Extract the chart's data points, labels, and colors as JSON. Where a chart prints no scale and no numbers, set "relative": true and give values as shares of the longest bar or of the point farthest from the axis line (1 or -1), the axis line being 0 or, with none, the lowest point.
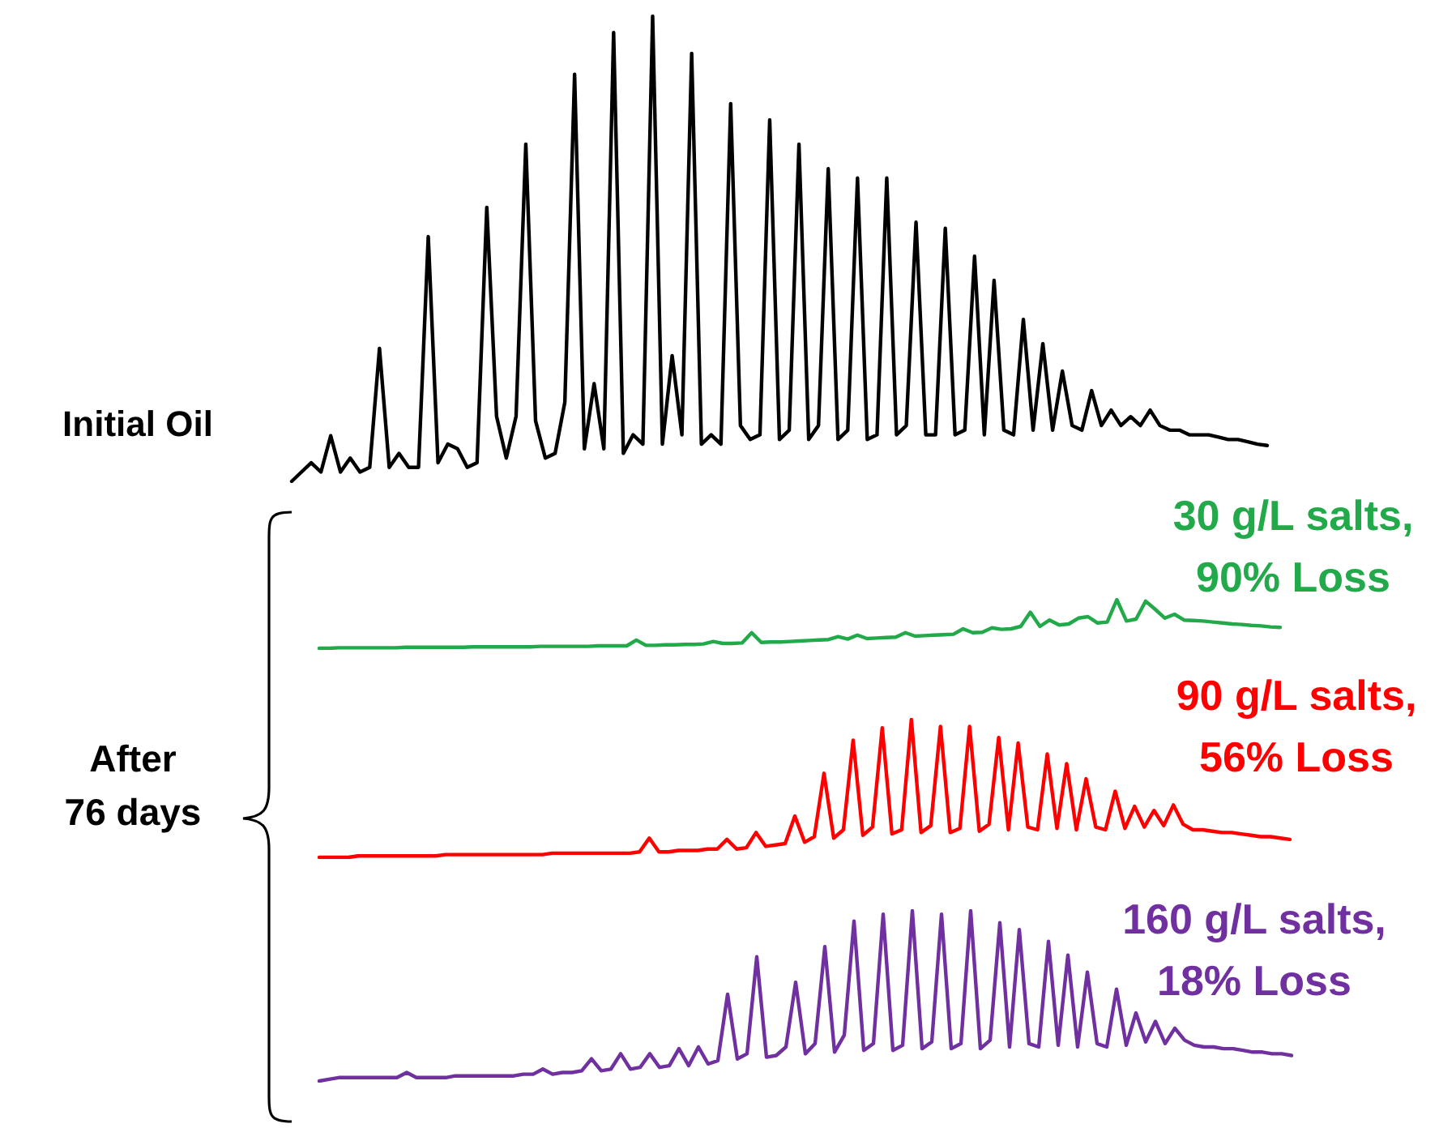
{
  "chart_data": [
    {
      "type": "line",
      "relative": true,
      "title": "Initial Oil",
      "color": "#000000",
      "categories": [
        null,
        null,
        null,
        null,
        null,
        null,
        null,
        null,
        null,
        null,
        null,
        null,
        null,
        null,
        null,
        null,
        null,
        null,
        null,
        null,
        null,
        null,
        null,
        null,
        null,
        null,
        null,
        null,
        null,
        null,
        null,
        null,
        null,
        null,
        null,
        null,
        null,
        null,
        null,
        null,
        null,
        null,
        null,
        null,
        null,
        null,
        null,
        null,
        null,
        null,
        null,
        null,
        null,
        null,
        null,
        null,
        null,
        null,
        null,
        null,
        null,
        null,
        null,
        null,
        null,
        null,
        null,
        null,
        null,
        null,
        null,
        null,
        null,
        null,
        null,
        null,
        null,
        null,
        null,
        null,
        null,
        null,
        null,
        null,
        null,
        null,
        null,
        null,
        null,
        null,
        null,
        null,
        null,
        null,
        null,
        null,
        null,
        null,
        null,
        null,
        null
      ],
      "values": [
        0.0,
        0.02,
        0.04,
        0.02,
        0.098,
        0.02,
        0.05,
        0.02,
        0.03,
        0.286,
        0.03,
        0.06,
        0.03,
        0.03,
        0.526,
        0.04,
        0.08,
        0.07,
        0.03,
        0.04,
        0.589,
        0.14,
        0.05,
        0.14,
        0.725,
        0.13,
        0.05,
        0.06,
        0.17,
        0.875,
        0.07,
        0.21,
        0.07,
        0.965,
        0.06,
        0.1,
        0.08,
        1.0,
        0.08,
        0.27,
        0.1,
        0.92,
        0.08,
        0.1,
        0.08,
        0.812,
        0.12,
        0.09,
        0.1,
        0.777,
        0.09,
        0.11,
        0.725,
        0.09,
        0.12,
        0.672,
        0.09,
        0.11,
        0.652,
        0.09,
        0.1,
        0.652,
        0.1,
        0.12,
        0.557,
        0.1,
        0.1,
        0.544,
        0.1,
        0.11,
        0.484,
        0.1,
        0.432,
        0.11,
        0.1,
        0.348,
        0.11,
        0.296,
        0.11,
        0.237,
        0.12,
        0.11,
        0.195,
        0.12,
        0.153,
        0.12,
        0.139,
        0.12,
        0.153,
        0.12,
        0.11,
        0.11,
        0.1,
        0.1,
        0.1,
        0.095,
        0.09,
        0.09,
        0.085,
        0.08,
        0.077
      ]
    },
    {
      "type": "line",
      "relative": true,
      "title": "30 g/L salts,\n90% Loss",
      "color": "#22a94a",
      "categories": [
        null,
        null,
        null,
        null,
        null,
        null,
        null,
        null,
        null,
        null,
        null,
        null,
        null,
        null,
        null,
        null,
        null,
        null,
        null,
        null,
        null,
        null,
        null,
        null,
        null,
        null,
        null,
        null,
        null,
        null,
        null,
        null,
        null,
        null,
        null,
        null,
        null,
        null,
        null,
        null,
        null,
        null,
        null,
        null,
        null,
        null,
        null,
        null,
        null,
        null,
        null,
        null,
        null,
        null,
        null,
        null,
        null,
        null,
        null,
        null,
        null,
        null,
        null,
        null,
        null,
        null,
        null,
        null,
        null,
        null,
        null,
        null,
        null,
        null,
        null,
        null,
        null,
        null,
        null,
        null,
        null,
        null,
        null,
        null,
        null,
        null,
        null,
        null,
        null,
        null,
        null,
        null,
        null,
        null,
        null,
        null,
        null,
        null,
        null,
        null,
        null
      ],
      "values": [
        0,
        0,
        0.01,
        0.01,
        0.01,
        0.01,
        0.01,
        0.01,
        0.01,
        0.02,
        0.02,
        0.02,
        0.02,
        0.02,
        0.02,
        0.02,
        0.03,
        0.03,
        0.03,
        0.03,
        0.03,
        0.03,
        0.03,
        0.04,
        0.04,
        0.04,
        0.04,
        0.04,
        0.04,
        0.05,
        0.05,
        0.05,
        0.05,
        0.17,
        0.06,
        0.06,
        0.07,
        0.07,
        0.08,
        0.08,
        0.09,
        0.14,
        0.1,
        0.1,
        0.11,
        0.32,
        0.12,
        0.13,
        0.13,
        0.14,
        0.15,
        0.16,
        0.17,
        0.18,
        0.24,
        0.19,
        0.27,
        0.2,
        0.21,
        0.22,
        0.23,
        0.32,
        0.25,
        0.26,
        0.27,
        0.28,
        0.29,
        0.4,
        0.32,
        0.33,
        0.42,
        0.39,
        0.4,
        0.45,
        0.74,
        0.45,
        0.58,
        0.48,
        0.5,
        0.62,
        0.65,
        0.52,
        0.54,
        1.0,
        0.56,
        0.6,
        0.97,
        0.8,
        0.62,
        0.7,
        0.58,
        0.57,
        0.56,
        0.54,
        0.52,
        0.5,
        0.49,
        0.47,
        0.46,
        0.44,
        0.43
      ]
    },
    {
      "type": "line",
      "relative": true,
      "title": "90 g/L salts,\n56% Loss",
      "color": "#ff0000",
      "annotations": [
        "After\n76 days"
      ],
      "categories": [
        null,
        null,
        null,
        null,
        null,
        null,
        null,
        null,
        null,
        null,
        null,
        null,
        null,
        null,
        null,
        null,
        null,
        null,
        null,
        null,
        null,
        null,
        null,
        null,
        null,
        null,
        null,
        null,
        null,
        null,
        null,
        null,
        null,
        null,
        null,
        null,
        null,
        null,
        null,
        null,
        null,
        null,
        null,
        null,
        null,
        null,
        null,
        null,
        null,
        null,
        null,
        null,
        null,
        null,
        null,
        null,
        null,
        null,
        null,
        null,
        null,
        null,
        null,
        null,
        null,
        null,
        null,
        null,
        null,
        null,
        null,
        null,
        null,
        null,
        null,
        null,
        null,
        null,
        null,
        null,
        null,
        null,
        null,
        null,
        null,
        null,
        null,
        null,
        null,
        null,
        null,
        null,
        null,
        null,
        null,
        null,
        null,
        null,
        null,
        null,
        null
      ],
      "values": [
        0,
        0,
        0,
        0,
        0.01,
        0.01,
        0.01,
        0.01,
        0.01,
        0.01,
        0.01,
        0.01,
        0.01,
        0.02,
        0.02,
        0.02,
        0.02,
        0.02,
        0.02,
        0.02,
        0.02,
        0.02,
        0.02,
        0.02,
        0.03,
        0.03,
        0.03,
        0.03,
        0.03,
        0.03,
        0.03,
        0.03,
        0.03,
        0.04,
        0.14,
        0.04,
        0.04,
        0.05,
        0.05,
        0.05,
        0.06,
        0.06,
        0.13,
        0.06,
        0.07,
        0.18,
        0.08,
        0.09,
        0.1,
        0.3,
        0.11,
        0.15,
        0.61,
        0.14,
        0.2,
        0.85,
        0.16,
        0.22,
        0.94,
        0.17,
        0.2,
        1.0,
        0.18,
        0.23,
        0.95,
        0.18,
        0.21,
        0.95,
        0.19,
        0.24,
        0.87,
        0.2,
        0.83,
        0.22,
        0.2,
        0.75,
        0.21,
        0.68,
        0.2,
        0.57,
        0.22,
        0.2,
        0.48,
        0.21,
        0.37,
        0.22,
        0.34,
        0.23,
        0.38,
        0.24,
        0.2,
        0.2,
        0.19,
        0.18,
        0.18,
        0.17,
        0.16,
        0.15,
        0.15,
        0.14,
        0.13
      ]
    },
    {
      "type": "line",
      "relative": true,
      "title": "160 g/L salts,\n18% Loss",
      "color": "#7030a0",
      "categories": [
        null,
        null,
        null,
        null,
        null,
        null,
        null,
        null,
        null,
        null,
        null,
        null,
        null,
        null,
        null,
        null,
        null,
        null,
        null,
        null,
        null,
        null,
        null,
        null,
        null,
        null,
        null,
        null,
        null,
        null,
        null,
        null,
        null,
        null,
        null,
        null,
        null,
        null,
        null,
        null,
        null,
        null,
        null,
        null,
        null,
        null,
        null,
        null,
        null,
        null,
        null,
        null,
        null,
        null,
        null,
        null,
        null,
        null,
        null,
        null,
        null,
        null,
        null,
        null,
        null,
        null,
        null,
        null,
        null,
        null,
        null,
        null,
        null,
        null,
        null,
        null,
        null,
        null,
        null,
        null,
        null,
        null,
        null,
        null,
        null,
        null,
        null,
        null,
        null,
        null,
        null,
        null,
        null,
        null,
        null,
        null,
        null,
        null,
        null,
        null,
        null
      ],
      "values": [
        0,
        0.01,
        0.02,
        0.02,
        0.02,
        0.02,
        0.02,
        0.02,
        0.02,
        0.05,
        0.02,
        0.02,
        0.02,
        0.02,
        0.03,
        0.03,
        0.03,
        0.03,
        0.03,
        0.03,
        0.03,
        0.04,
        0.04,
        0.07,
        0.04,
        0.05,
        0.05,
        0.06,
        0.13,
        0.06,
        0.07,
        0.16,
        0.07,
        0.08,
        0.16,
        0.08,
        0.09,
        0.19,
        0.09,
        0.2,
        0.1,
        0.12,
        0.51,
        0.13,
        0.16,
        0.73,
        0.14,
        0.15,
        0.2,
        0.58,
        0.16,
        0.22,
        0.79,
        0.17,
        0.27,
        0.94,
        0.18,
        0.22,
        0.98,
        0.18,
        0.21,
        1.0,
        0.19,
        0.23,
        0.98,
        0.19,
        0.22,
        1.0,
        0.19,
        0.24,
        0.93,
        0.2,
        0.89,
        0.22,
        0.2,
        0.82,
        0.21,
        0.74,
        0.2,
        0.64,
        0.22,
        0.2,
        0.54,
        0.21,
        0.4,
        0.23,
        0.35,
        0.22,
        0.31,
        0.24,
        0.21,
        0.2,
        0.2,
        0.19,
        0.19,
        0.18,
        0.17,
        0.17,
        0.16,
        0.16,
        0.15
      ]
    }
  ]
}
